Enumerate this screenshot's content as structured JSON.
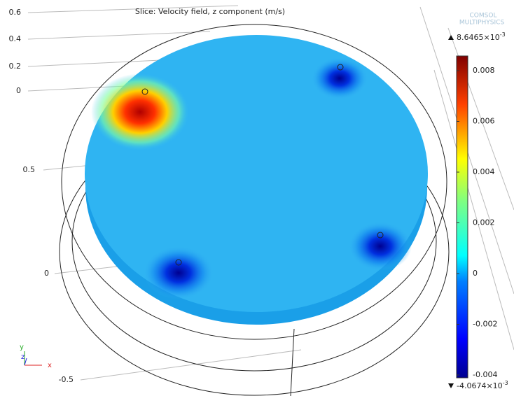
{
  "title": "Slice: Velocity field, z component (m/s)",
  "logo": [
    "COMSOL",
    "MULTIPHYSICS"
  ],
  "colorbar": {
    "max": {
      "mantissa": "8.6465×10",
      "exponent": "-3"
    },
    "min": {
      "mantissa": "-4.0674×10",
      "exponent": "-3"
    },
    "ticks": [
      "0.008",
      "0.006",
      "0.004",
      "0.002",
      "0",
      "-0.002",
      "-0.004"
    ]
  },
  "axis_labels": {
    "z": [
      "0.6",
      "0.4",
      "0.2",
      "0"
    ],
    "y": [
      "0.5",
      "0",
      "-0.5"
    ]
  },
  "triad": [
    "y",
    "z",
    "x"
  ]
}
